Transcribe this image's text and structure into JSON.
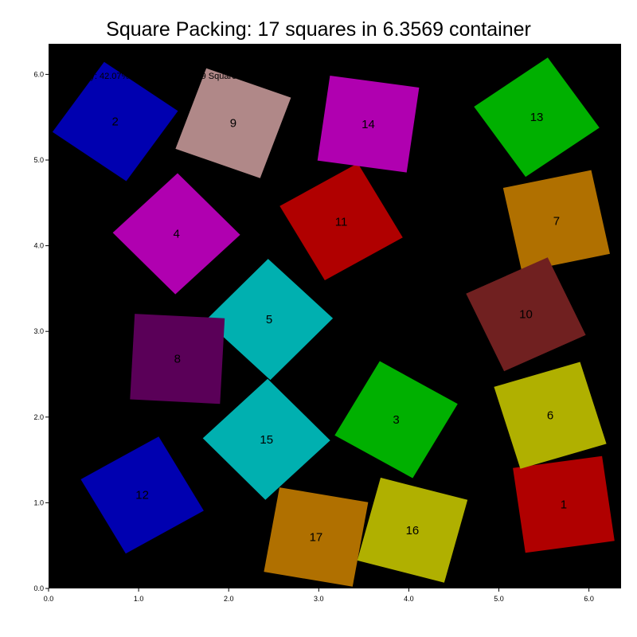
{
  "chart_data": {
    "type": "scatter",
    "title": "Square Packing: 17 squares in 6.3569 container",
    "annotation": "Efficiency: 42.07% | Container: 6.3569 Square",
    "container_side": 6.3569,
    "xlim": [
      0,
      6.3569
    ],
    "ylim": [
      0,
      6.3569
    ],
    "xticks": [
      "0.0",
      "1.0",
      "2.0",
      "3.0",
      "4.0",
      "5.0",
      "6.0"
    ],
    "yticks": [
      "0.0",
      "1.0",
      "2.0",
      "3.0",
      "4.0",
      "5.0",
      "6.0"
    ],
    "background": "#000000",
    "squares": [
      {
        "label": "1",
        "cx": 5.72,
        "cy": 0.98,
        "side": 1.0,
        "angle": 8,
        "color": "#b00000"
      },
      {
        "label": "2",
        "cx": 0.74,
        "cy": 5.45,
        "side": 1.0,
        "angle": -35,
        "color": "#0000b0"
      },
      {
        "label": "3",
        "cx": 3.86,
        "cy": 1.97,
        "side": 1.0,
        "angle": -30,
        "color": "#00b000"
      },
      {
        "label": "4",
        "cx": 1.42,
        "cy": 4.14,
        "side": 1.0,
        "angle": 44,
        "color": "#b000b0"
      },
      {
        "label": "5",
        "cx": 2.45,
        "cy": 3.14,
        "side": 1.0,
        "angle": -44,
        "color": "#00b0b0"
      },
      {
        "label": "6",
        "cx": 5.57,
        "cy": 2.02,
        "side": 1.0,
        "angle": 17,
        "color": "#b0b000"
      },
      {
        "label": "7",
        "cx": 5.64,
        "cy": 4.29,
        "side": 1.0,
        "angle": 12,
        "color": "#b07000"
      },
      {
        "label": "8",
        "cx": 1.43,
        "cy": 2.68,
        "side": 1.0,
        "angle": -3,
        "color": "#5a0058"
      },
      {
        "label": "9",
        "cx": 2.05,
        "cy": 5.43,
        "side": 1.0,
        "angle": -20,
        "color": "#b08888"
      },
      {
        "label": "10",
        "cx": 5.3,
        "cy": 3.2,
        "side": 1.0,
        "angle": 25,
        "color": "#702020"
      },
      {
        "label": "11",
        "cx": 3.25,
        "cy": 4.28,
        "side": 1.0,
        "angle": 30,
        "color": "#b00000"
      },
      {
        "label": "12",
        "cx": 1.04,
        "cy": 1.09,
        "side": 1.0,
        "angle": 30,
        "color": "#0000b0"
      },
      {
        "label": "13",
        "cx": 5.42,
        "cy": 5.5,
        "side": 1.0,
        "angle": 35,
        "color": "#00b000"
      },
      {
        "label": "14",
        "cx": 3.55,
        "cy": 5.42,
        "side": 1.0,
        "angle": -8,
        "color": "#b000b0"
      },
      {
        "label": "15",
        "cx": 2.42,
        "cy": 1.74,
        "side": 1.0,
        "angle": 44,
        "color": "#00b0b0"
      },
      {
        "label": "16",
        "cx": 4.04,
        "cy": 0.68,
        "side": 1.0,
        "angle": -15,
        "color": "#b0b000"
      },
      {
        "label": "17",
        "cx": 2.97,
        "cy": 0.6,
        "side": 1.0,
        "angle": -10,
        "color": "#b07000"
      }
    ]
  }
}
